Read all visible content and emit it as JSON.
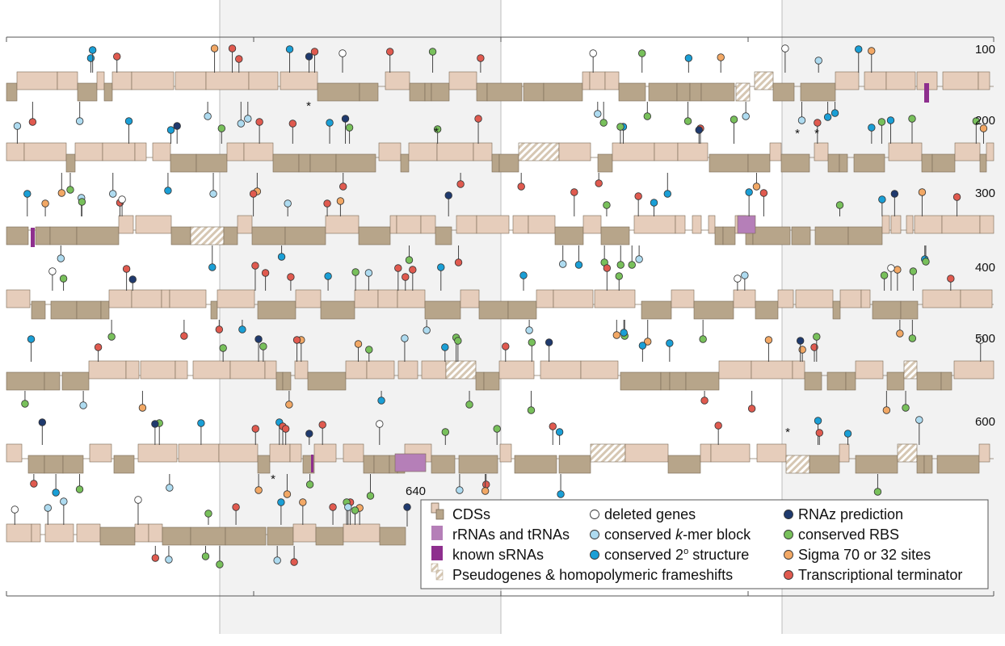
{
  "track_end_labels": [
    "100",
    "200",
    "300",
    "400",
    "500",
    "600"
  ],
  "final_track_label": "640",
  "colors": {
    "cds_light": "#e6cdbb",
    "cds_dark": "#b7a58a",
    "cds_stroke": "#7a6a55",
    "rrna": "#b57fb8",
    "srna": "#8e2f8e",
    "deleted": "#ffffff",
    "kmer": "#aedbf0",
    "structure": "#1a9fd6",
    "rnaz": "#1f3a6e",
    "rbs": "#78c05b",
    "sigma": "#f2a865",
    "terminator": "#e05a4f",
    "shaded_band": "#f2f2f2"
  },
  "legend": {
    "items": [
      {
        "key": "cds",
        "label": "CDSs",
        "icon": "cds-swatch-icon"
      },
      {
        "key": "rrna",
        "label": "rRNAs and tRNAs",
        "icon": "rrna-swatch-icon"
      },
      {
        "key": "srna",
        "label": "known sRNAs",
        "icon": "srna-swatch-icon"
      },
      {
        "key": "pseudo",
        "label": "Pseudogenes & homopolymeric frameshifts",
        "icon": "pseudogene-swatch-icon"
      },
      {
        "key": "deleted",
        "label": "deleted genes",
        "icon": "deleted-gene-marker-icon"
      },
      {
        "key": "kmer",
        "label_pre": "conserved ",
        "label_em": "k",
        "label_post": "-mer block",
        "icon": "kmer-marker-icon"
      },
      {
        "key": "structure",
        "label_pre": "conserved 2",
        "label_sup": "o",
        "label_post": " structure",
        "icon": "structure-marker-icon"
      },
      {
        "key": "rnaz",
        "label": "RNAz prediction",
        "icon": "rnaz-marker-icon"
      },
      {
        "key": "rbs",
        "label": "conserved RBS",
        "icon": "rbs-marker-icon"
      },
      {
        "key": "sigma",
        "label": "Sigma 70 or 32 sites",
        "icon": "sigma-marker-icon"
      },
      {
        "key": "terminator",
        "label": "Transcriptional terminator",
        "icon": "terminator-marker-icon"
      }
    ]
  }
}
